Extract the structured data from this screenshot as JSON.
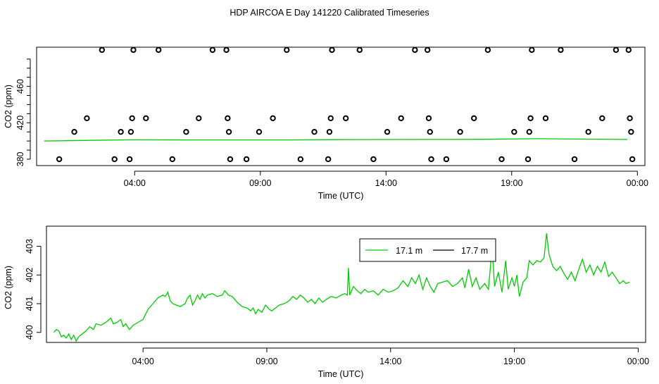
{
  "page_title": "HDP AIRCOA E  Day 141220  Calibrated Timeseries",
  "chart_data": [
    {
      "type": "scatter",
      "xlabel": "Time (UTC)",
      "ylabel": "CO2 (ppm)",
      "x_ticks": [
        "04:00",
        "09:00",
        "14:00",
        "19:00",
        "00:00"
      ],
      "x_tick_hours": [
        4,
        9,
        14,
        19,
        24
      ],
      "xlim": [
        0.1,
        24.3
      ],
      "y_ticks": [
        380,
        420,
        460
      ],
      "ylim": [
        373,
        503
      ],
      "colors": {
        "points": "#000000",
        "line": "#00cc00"
      },
      "calibration_points": [
        {
          "x": 1.0,
          "y": 380
        },
        {
          "x": 1.6,
          "y": 410
        },
        {
          "x": 2.1,
          "y": 425
        },
        {
          "x": 2.7,
          "y": 500
        },
        {
          "x": 3.2,
          "y": 380
        },
        {
          "x": 3.45,
          "y": 410
        },
        {
          "x": 3.8,
          "y": 380
        },
        {
          "x": 3.85,
          "y": 410
        },
        {
          "x": 3.9,
          "y": 425
        },
        {
          "x": 3.95,
          "y": 500
        },
        {
          "x": 4.45,
          "y": 425
        },
        {
          "x": 4.95,
          "y": 500
        },
        {
          "x": 5.5,
          "y": 380
        },
        {
          "x": 6.05,
          "y": 410
        },
        {
          "x": 6.55,
          "y": 425
        },
        {
          "x": 7.1,
          "y": 500
        },
        {
          "x": 7.65,
          "y": 500
        },
        {
          "x": 7.7,
          "y": 425
        },
        {
          "x": 7.75,
          "y": 410
        },
        {
          "x": 7.8,
          "y": 380
        },
        {
          "x": 8.45,
          "y": 380
        },
        {
          "x": 8.95,
          "y": 410
        },
        {
          "x": 9.5,
          "y": 425
        },
        {
          "x": 10.05,
          "y": 500
        },
        {
          "x": 10.6,
          "y": 380
        },
        {
          "x": 11.15,
          "y": 410
        },
        {
          "x": 11.7,
          "y": 380
        },
        {
          "x": 11.75,
          "y": 410
        },
        {
          "x": 11.8,
          "y": 425
        },
        {
          "x": 11.85,
          "y": 500
        },
        {
          "x": 12.4,
          "y": 425
        },
        {
          "x": 12.95,
          "y": 500
        },
        {
          "x": 13.5,
          "y": 380
        },
        {
          "x": 14.05,
          "y": 410
        },
        {
          "x": 14.6,
          "y": 425
        },
        {
          "x": 15.15,
          "y": 500
        },
        {
          "x": 15.65,
          "y": 500
        },
        {
          "x": 15.7,
          "y": 425
        },
        {
          "x": 15.75,
          "y": 410
        },
        {
          "x": 15.8,
          "y": 380
        },
        {
          "x": 16.4,
          "y": 380
        },
        {
          "x": 16.95,
          "y": 410
        },
        {
          "x": 17.5,
          "y": 425
        },
        {
          "x": 18.05,
          "y": 500
        },
        {
          "x": 18.6,
          "y": 380
        },
        {
          "x": 19.1,
          "y": 410
        },
        {
          "x": 19.65,
          "y": 380
        },
        {
          "x": 19.7,
          "y": 410
        },
        {
          "x": 19.75,
          "y": 425
        },
        {
          "x": 19.8,
          "y": 500
        },
        {
          "x": 20.35,
          "y": 425
        },
        {
          "x": 20.95,
          "y": 500
        },
        {
          "x": 21.5,
          "y": 380
        },
        {
          "x": 22.05,
          "y": 410
        },
        {
          "x": 22.6,
          "y": 425
        },
        {
          "x": 23.15,
          "y": 500
        },
        {
          "x": 23.65,
          "y": 500
        },
        {
          "x": 23.7,
          "y": 425
        },
        {
          "x": 23.75,
          "y": 410
        },
        {
          "x": 23.8,
          "y": 380
        }
      ],
      "series": [
        {
          "values": [
            {
              "x": 0.4,
              "y": 400.0
            },
            {
              "x": 2.0,
              "y": 400.6
            },
            {
              "x": 4.0,
              "y": 401.3
            },
            {
              "x": 6.0,
              "y": 401.2
            },
            {
              "x": 8.0,
              "y": 401.2
            },
            {
              "x": 10.0,
              "y": 401.2
            },
            {
              "x": 12.0,
              "y": 401.5
            },
            {
              "x": 14.0,
              "y": 401.6
            },
            {
              "x": 16.0,
              "y": 401.7
            },
            {
              "x": 18.0,
              "y": 401.9
            },
            {
              "x": 20.0,
              "y": 402.5
            },
            {
              "x": 22.0,
              "y": 402.0
            },
            {
              "x": 23.6,
              "y": 401.7
            }
          ]
        }
      ]
    },
    {
      "type": "line",
      "xlabel": "Time (UTC)",
      "ylabel": "CO2 (ppm)",
      "x_ticks": [
        "04:00",
        "09:00",
        "14:00",
        "19:00",
        "00:00"
      ],
      "x_tick_hours": [
        4,
        9,
        14,
        19,
        24
      ],
      "xlim": [
        0.1,
        24.3
      ],
      "y_ticks": [
        400,
        401,
        402,
        403
      ],
      "ylim": [
        399.65,
        403.7
      ],
      "legend_position": "top-center",
      "series": [
        {
          "name": "17.1 m",
          "color": "#00cc00",
          "values": [
            {
              "x": 0.4,
              "y": 400.0
            },
            {
              "x": 0.5,
              "y": 400.1
            },
            {
              "x": 0.6,
              "y": 400.05
            },
            {
              "x": 0.7,
              "y": 399.85
            },
            {
              "x": 0.8,
              "y": 399.9
            },
            {
              "x": 0.9,
              "y": 399.8
            },
            {
              "x": 1.0,
              "y": 399.95
            },
            {
              "x": 1.1,
              "y": 399.75
            },
            {
              "x": 1.2,
              "y": 399.9
            },
            {
              "x": 1.3,
              "y": 399.7
            },
            {
              "x": 1.4,
              "y": 399.85
            },
            {
              "x": 1.55,
              "y": 399.95
            },
            {
              "x": 1.7,
              "y": 400.05
            },
            {
              "x": 1.85,
              "y": 400.2
            },
            {
              "x": 2.0,
              "y": 400.1
            },
            {
              "x": 2.1,
              "y": 400.3
            },
            {
              "x": 2.3,
              "y": 400.25
            },
            {
              "x": 2.5,
              "y": 400.35
            },
            {
              "x": 2.7,
              "y": 400.5
            },
            {
              "x": 2.8,
              "y": 400.3
            },
            {
              "x": 2.95,
              "y": 400.35
            },
            {
              "x": 3.1,
              "y": 400.45
            },
            {
              "x": 3.2,
              "y": 400.2
            },
            {
              "x": 3.3,
              "y": 400.3
            },
            {
              "x": 3.45,
              "y": 400.1
            },
            {
              "x": 3.6,
              "y": 400.25
            },
            {
              "x": 3.8,
              "y": 400.35
            },
            {
              "x": 4.0,
              "y": 400.45
            },
            {
              "x": 4.2,
              "y": 400.8
            },
            {
              "x": 4.4,
              "y": 401.0
            },
            {
              "x": 4.6,
              "y": 401.2
            },
            {
              "x": 4.8,
              "y": 401.3
            },
            {
              "x": 4.9,
              "y": 401.25
            },
            {
              "x": 5.0,
              "y": 401.4
            },
            {
              "x": 5.1,
              "y": 401.1
            },
            {
              "x": 5.2,
              "y": 401.0
            },
            {
              "x": 5.35,
              "y": 400.95
            },
            {
              "x": 5.5,
              "y": 400.9
            },
            {
              "x": 5.7,
              "y": 401.0
            },
            {
              "x": 5.8,
              "y": 401.2
            },
            {
              "x": 5.9,
              "y": 401.3
            },
            {
              "x": 6.0,
              "y": 400.95
            },
            {
              "x": 6.1,
              "y": 401.1
            },
            {
              "x": 6.2,
              "y": 401.3
            },
            {
              "x": 6.3,
              "y": 401.15
            },
            {
              "x": 6.4,
              "y": 401.35
            },
            {
              "x": 6.5,
              "y": 401.2
            },
            {
              "x": 6.6,
              "y": 401.3
            },
            {
              "x": 6.8,
              "y": 401.35
            },
            {
              "x": 7.0,
              "y": 401.25
            },
            {
              "x": 7.2,
              "y": 401.3
            },
            {
              "x": 7.3,
              "y": 401.45
            },
            {
              "x": 7.45,
              "y": 401.3
            },
            {
              "x": 7.6,
              "y": 401.25
            },
            {
              "x": 7.8,
              "y": 401.05
            },
            {
              "x": 8.0,
              "y": 400.9
            },
            {
              "x": 8.2,
              "y": 400.85
            },
            {
              "x": 8.35,
              "y": 400.75
            },
            {
              "x": 8.45,
              "y": 400.85
            },
            {
              "x": 8.55,
              "y": 400.65
            },
            {
              "x": 8.65,
              "y": 400.8
            },
            {
              "x": 8.8,
              "y": 400.7
            },
            {
              "x": 8.95,
              "y": 400.95
            },
            {
              "x": 9.1,
              "y": 400.8
            },
            {
              "x": 9.2,
              "y": 400.75
            },
            {
              "x": 9.35,
              "y": 400.85
            },
            {
              "x": 9.5,
              "y": 400.95
            },
            {
              "x": 9.7,
              "y": 401.0
            },
            {
              "x": 9.9,
              "y": 401.1
            },
            {
              "x": 10.05,
              "y": 401.25
            },
            {
              "x": 10.2,
              "y": 401.15
            },
            {
              "x": 10.35,
              "y": 401.3
            },
            {
              "x": 10.5,
              "y": 401.2
            },
            {
              "x": 10.65,
              "y": 401.05
            },
            {
              "x": 10.8,
              "y": 401.15
            },
            {
              "x": 10.95,
              "y": 401.0
            },
            {
              "x": 11.1,
              "y": 401.2
            },
            {
              "x": 11.25,
              "y": 401.05
            },
            {
              "x": 11.4,
              "y": 401.15
            },
            {
              "x": 11.6,
              "y": 401.25
            },
            {
              "x": 11.8,
              "y": 401.2
            },
            {
              "x": 12.0,
              "y": 401.3
            },
            {
              "x": 12.15,
              "y": 401.35
            },
            {
              "x": 12.25,
              "y": 401.3
            },
            {
              "x": 12.3,
              "y": 402.25
            },
            {
              "x": 12.35,
              "y": 401.3
            },
            {
              "x": 12.5,
              "y": 401.6
            },
            {
              "x": 12.65,
              "y": 401.45
            },
            {
              "x": 12.8,
              "y": 401.35
            },
            {
              "x": 12.95,
              "y": 401.5
            },
            {
              "x": 13.1,
              "y": 401.4
            },
            {
              "x": 13.3,
              "y": 401.45
            },
            {
              "x": 13.5,
              "y": 401.3
            },
            {
              "x": 13.7,
              "y": 401.5
            },
            {
              "x": 13.9,
              "y": 401.4
            },
            {
              "x": 14.1,
              "y": 401.45
            },
            {
              "x": 14.3,
              "y": 401.55
            },
            {
              "x": 14.5,
              "y": 401.8
            },
            {
              "x": 14.7,
              "y": 401.6
            },
            {
              "x": 14.85,
              "y": 401.9
            },
            {
              "x": 15.0,
              "y": 401.7
            },
            {
              "x": 15.15,
              "y": 402.0
            },
            {
              "x": 15.3,
              "y": 401.5
            },
            {
              "x": 15.45,
              "y": 401.9
            },
            {
              "x": 15.6,
              "y": 401.6
            },
            {
              "x": 15.75,
              "y": 401.4
            },
            {
              "x": 15.9,
              "y": 401.7
            },
            {
              "x": 16.1,
              "y": 401.75
            },
            {
              "x": 16.3,
              "y": 401.8
            },
            {
              "x": 16.5,
              "y": 401.6
            },
            {
              "x": 16.7,
              "y": 401.7
            },
            {
              "x": 16.9,
              "y": 401.9
            },
            {
              "x": 17.0,
              "y": 401.55
            },
            {
              "x": 17.15,
              "y": 402.2
            },
            {
              "x": 17.3,
              "y": 401.6
            },
            {
              "x": 17.45,
              "y": 401.9
            },
            {
              "x": 17.6,
              "y": 401.5
            },
            {
              "x": 17.8,
              "y": 401.7
            },
            {
              "x": 17.95,
              "y": 401.5
            },
            {
              "x": 18.1,
              "y": 402.95
            },
            {
              "x": 18.2,
              "y": 401.6
            },
            {
              "x": 18.35,
              "y": 402.1
            },
            {
              "x": 18.5,
              "y": 401.4
            },
            {
              "x": 18.65,
              "y": 402.5
            },
            {
              "x": 18.75,
              "y": 401.5
            },
            {
              "x": 18.9,
              "y": 401.9
            },
            {
              "x": 19.0,
              "y": 401.6
            },
            {
              "x": 19.1,
              "y": 402.0
            },
            {
              "x": 19.2,
              "y": 401.25
            },
            {
              "x": 19.35,
              "y": 401.75
            },
            {
              "x": 19.5,
              "y": 401.9
            },
            {
              "x": 19.6,
              "y": 402.5
            },
            {
              "x": 19.75,
              "y": 402.35
            },
            {
              "x": 19.9,
              "y": 402.5
            },
            {
              "x": 20.05,
              "y": 402.45
            },
            {
              "x": 20.2,
              "y": 402.6
            },
            {
              "x": 20.3,
              "y": 403.45
            },
            {
              "x": 20.4,
              "y": 402.7
            },
            {
              "x": 20.55,
              "y": 402.3
            },
            {
              "x": 20.7,
              "y": 402.15
            },
            {
              "x": 20.85,
              "y": 402.3
            },
            {
              "x": 21.0,
              "y": 402.05
            },
            {
              "x": 21.15,
              "y": 401.85
            },
            {
              "x": 21.3,
              "y": 402.1
            },
            {
              "x": 21.45,
              "y": 401.8
            },
            {
              "x": 21.6,
              "y": 402.2
            },
            {
              "x": 21.75,
              "y": 402.55
            },
            {
              "x": 21.9,
              "y": 402.1
            },
            {
              "x": 22.05,
              "y": 402.35
            },
            {
              "x": 22.2,
              "y": 402.0
            },
            {
              "x": 22.35,
              "y": 402.3
            },
            {
              "x": 22.5,
              "y": 402.1
            },
            {
              "x": 22.65,
              "y": 402.45
            },
            {
              "x": 22.8,
              "y": 401.95
            },
            {
              "x": 22.95,
              "y": 402.1
            },
            {
              "x": 23.1,
              "y": 401.9
            },
            {
              "x": 23.25,
              "y": 401.7
            },
            {
              "x": 23.4,
              "y": 401.8
            },
            {
              "x": 23.5,
              "y": 401.7
            },
            {
              "x": 23.65,
              "y": 401.75
            }
          ]
        },
        {
          "name": "17.7 m",
          "color": "#000000",
          "values": []
        }
      ]
    }
  ]
}
